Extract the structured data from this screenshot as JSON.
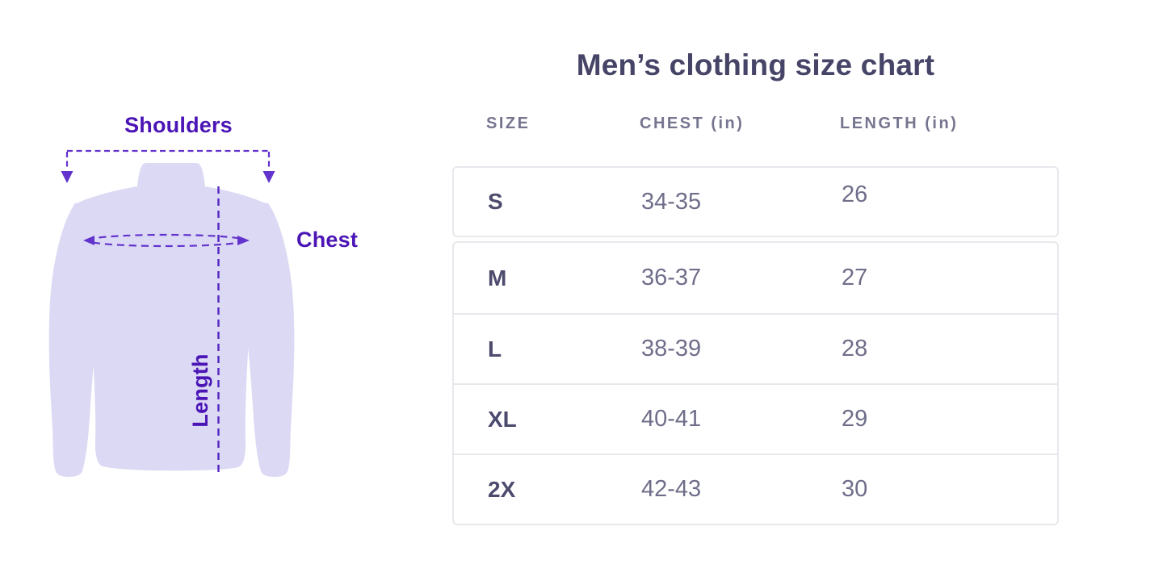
{
  "title": "Men’s clothing size chart",
  "diagram": {
    "shoulders_label": "Shoulders",
    "chest_label": "Chest",
    "length_label": "Length"
  },
  "chart_data": {
    "type": "table",
    "title": "Men’s clothing size chart",
    "columns": [
      "SIZE",
      "CHEST (in)",
      "LENGTH (in)"
    ],
    "rows": [
      [
        "S",
        "34-35",
        "26"
      ],
      [
        "M",
        "36-37",
        "27"
      ],
      [
        "L",
        "38-39",
        "28"
      ],
      [
        "XL",
        "40-41",
        "29"
      ],
      [
        "2X",
        "42-43",
        "30"
      ]
    ],
    "units": "inches",
    "layout": "diagram of long-sleeve shirt (back view) on left with shoulders, chest and length measurement annotations; 3-column size table on right"
  },
  "colors": {
    "accent-purple": "#4b15b6",
    "dash-purple": "#6233cd",
    "shirt-fill": "#dcd9f4",
    "title-color": "#464467",
    "header-color": "#76758f",
    "size-color": "#4c4b6e",
    "value-color": "#6f6e8a",
    "table-border": "#e8e7ec"
  }
}
